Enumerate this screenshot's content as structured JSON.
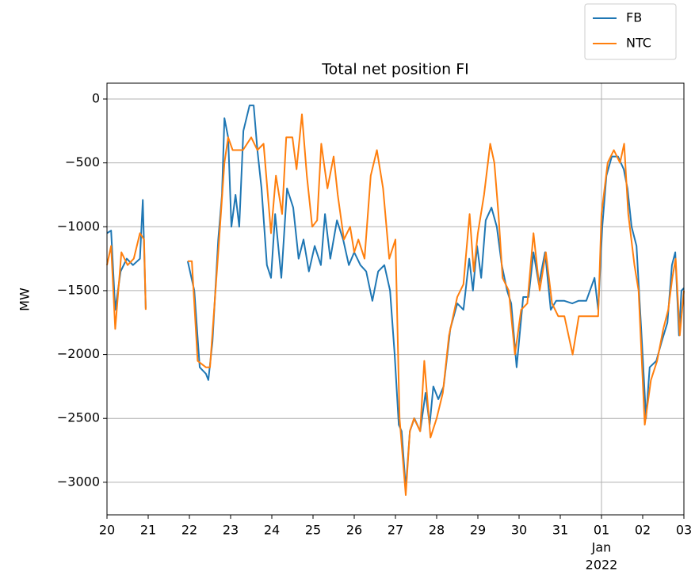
{
  "chart_data": {
    "type": "line",
    "title": "Total net position FI",
    "ylabel": "MW",
    "xlim": [
      0,
      14
    ],
    "ylim": [
      -3255,
      124
    ],
    "xticks": [
      {
        "value": 0,
        "label": "20"
      },
      {
        "value": 1,
        "label": "21"
      },
      {
        "value": 2,
        "label": "22"
      },
      {
        "value": 3,
        "label": "23"
      },
      {
        "value": 4,
        "label": "24"
      },
      {
        "value": 5,
        "label": "25"
      },
      {
        "value": 6,
        "label": "26"
      },
      {
        "value": 7,
        "label": "27"
      },
      {
        "value": 8,
        "label": "28"
      },
      {
        "value": 9,
        "label": "29"
      },
      {
        "value": 10,
        "label": "30"
      },
      {
        "value": 11,
        "label": "31"
      },
      {
        "value": 12,
        "label": "01"
      },
      {
        "value": 13,
        "label": "02"
      },
      {
        "value": 14,
        "label": "03"
      }
    ],
    "x_period_label": {
      "x": 12,
      "lines": [
        "Jan",
        "2022"
      ]
    },
    "x_grid_at": [
      12
    ],
    "yticks": [
      0,
      {
        "value": -500,
        "label": "−500"
      },
      {
        "value": -1000,
        "label": "−1000"
      },
      {
        "value": -1500,
        "label": "−1500"
      },
      {
        "value": -2000,
        "label": "−2000"
      },
      {
        "value": -2500,
        "label": "−2500"
      },
      {
        "value": -3000,
        "label": "−3000"
      }
    ],
    "grid": true,
    "legend": "upper right outside",
    "series": [
      {
        "name": "FB",
        "color": "#1f77b4",
        "x": [
          0,
          0.1,
          0.2,
          0.33,
          0.48,
          0.63,
          0.8,
          0.87,
          0.94,
          1.45,
          1.96,
          2.12,
          2.25,
          2.4,
          2.46,
          2.56,
          2.7,
          2.79,
          2.85,
          2.94,
          3.02,
          3.12,
          3.21,
          3.31,
          3.46,
          3.56,
          3.65,
          3.75,
          3.88,
          3.98,
          4.08,
          4.23,
          4.37,
          4.52,
          4.65,
          4.77,
          4.9,
          5.04,
          5.19,
          5.29,
          5.42,
          5.58,
          5.73,
          5.87,
          6.0,
          6.15,
          6.29,
          6.44,
          6.58,
          6.73,
          6.87,
          6.98,
          7.08,
          7.15,
          7.25,
          7.35,
          7.46,
          7.6,
          7.73,
          7.83,
          7.92,
          8.04,
          8.17,
          8.33,
          8.5,
          8.65,
          8.79,
          8.88,
          8.98,
          9.08,
          9.19,
          9.33,
          9.46,
          9.58,
          9.71,
          9.81,
          9.94,
          10.1,
          10.23,
          10.35,
          10.48,
          10.63,
          10.77,
          10.9,
          11.1,
          11.29,
          11.44,
          11.63,
          11.83,
          11.92,
          12.02,
          12.12,
          12.25,
          12.4,
          12.54,
          12.63,
          12.73,
          12.85,
          12.98,
          13.08,
          13.17,
          13.33,
          13.46,
          13.6,
          13.71,
          13.79,
          13.88,
          13.94,
          14
        ],
        "values": [
          -1050,
          -1030,
          -1650,
          -1350,
          -1250,
          -1300,
          -1250,
          -790,
          -1640,
          null,
          -1270,
          -1500,
          -2100,
          -2150,
          -2200,
          -1900,
          -1100,
          -750,
          -150,
          -300,
          -1000,
          -750,
          -1000,
          -250,
          -50,
          -50,
          -400,
          -700,
          -1300,
          -1400,
          -900,
          -1400,
          -700,
          -850,
          -1250,
          -1100,
          -1350,
          -1150,
          -1300,
          -900,
          -1250,
          -950,
          -1100,
          -1300,
          -1200,
          -1300,
          -1350,
          -1580,
          -1350,
          -1300,
          -1500,
          -2000,
          -2550,
          -2600,
          -3050,
          -2600,
          -2500,
          -2600,
          -2300,
          -2550,
          -2250,
          -2350,
          -2250,
          -1800,
          -1600,
          -1650,
          -1250,
          -1500,
          -1150,
          -1400,
          -950,
          -850,
          -1000,
          -1300,
          -1500,
          -1600,
          -2100,
          -1550,
          -1550,
          -1200,
          -1450,
          -1200,
          -1650,
          -1580,
          -1580,
          -1600,
          -1580,
          -1580,
          -1400,
          -1650,
          -1000,
          -600,
          -450,
          -450,
          -550,
          -700,
          -1000,
          -1150,
          -1900,
          -2500,
          -2100,
          -2050,
          -1900,
          -1750,
          -1300,
          -1200,
          -1850,
          -1500,
          -1480
        ]
      },
      {
        "name": "NTC",
        "color": "#ff7f0e",
        "x": [
          0,
          0.1,
          0.2,
          0.35,
          0.5,
          0.65,
          0.8,
          0.9,
          0.94,
          1.45,
          1.96,
          2.06,
          2.2,
          2.4,
          2.5,
          2.7,
          2.85,
          2.94,
          3.05,
          3.3,
          3.5,
          3.65,
          3.8,
          3.98,
          4.1,
          4.25,
          4.35,
          4.5,
          4.6,
          4.73,
          4.85,
          4.98,
          5.1,
          5.2,
          5.35,
          5.5,
          5.6,
          5.75,
          5.9,
          6.0,
          6.1,
          6.25,
          6.4,
          6.55,
          6.7,
          6.85,
          7.0,
          7.1,
          7.25,
          7.35,
          7.45,
          7.6,
          7.7,
          7.85,
          8.0,
          8.15,
          8.3,
          8.5,
          8.65,
          8.8,
          8.9,
          9.0,
          9.15,
          9.3,
          9.4,
          9.5,
          9.6,
          9.75,
          9.9,
          10.05,
          10.2,
          10.35,
          10.5,
          10.65,
          10.8,
          10.95,
          11.1,
          11.3,
          11.45,
          11.7,
          11.92,
          12.0,
          12.15,
          12.3,
          12.45,
          12.55,
          12.65,
          12.8,
          12.9,
          13.05,
          13.2,
          13.35,
          13.5,
          13.62,
          13.72,
          13.8,
          13.9,
          14.0
        ],
        "values": [
          -1300,
          -1150,
          -1800,
          -1200,
          -1300,
          -1250,
          -1050,
          -1100,
          -1650,
          null,
          -1270,
          -1270,
          -2050,
          -2100,
          -2100,
          -1200,
          -500,
          -300,
          -400,
          -400,
          -300,
          -400,
          -350,
          -1050,
          -600,
          -900,
          -300,
          -300,
          -550,
          -120,
          -600,
          -1000,
          -950,
          -350,
          -700,
          -450,
          -750,
          -1100,
          -1000,
          -1200,
          -1100,
          -1250,
          -600,
          -400,
          -700,
          -1250,
          -1100,
          -2500,
          -3100,
          -2600,
          -2500,
          -2600,
          -2050,
          -2650,
          -2500,
          -2300,
          -1850,
          -1550,
          -1450,
          -900,
          -1350,
          -1050,
          -750,
          -350,
          -500,
          -900,
          -1400,
          -1500,
          -2000,
          -1650,
          -1600,
          -1050,
          -1500,
          -1200,
          -1600,
          -1700,
          -1700,
          -2000,
          -1700,
          -1700,
          -1700,
          -900,
          -500,
          -400,
          -500,
          -350,
          -900,
          -1300,
          -1500,
          -2550,
          -2200,
          -2050,
          -1800,
          -1650,
          -1400,
          -1250,
          -1850,
          -1500
        ]
      }
    ]
  }
}
